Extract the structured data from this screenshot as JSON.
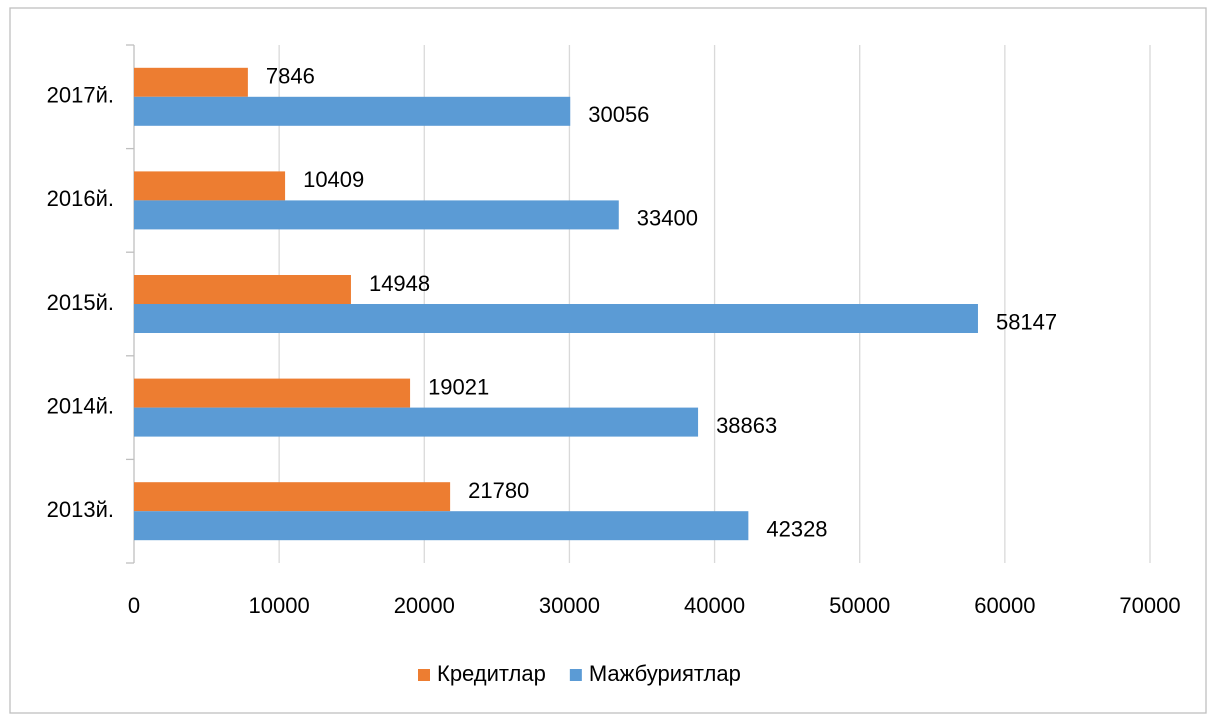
{
  "chart_data": {
    "type": "bar",
    "orientation": "horizontal",
    "categories": [
      "2013й.",
      "2014й.",
      "2015й.",
      "2016й.",
      "2017й."
    ],
    "series": [
      {
        "name": "Кредитлар",
        "color": "#ED7D31",
        "values": [
          21780,
          19021,
          14948,
          10409,
          7846
        ]
      },
      {
        "name": "Мажбуриятлар",
        "color": "#5B9BD5",
        "values": [
          42328,
          38863,
          58147,
          33400,
          30056
        ]
      }
    ],
    "xlim": [
      0,
      70000
    ],
    "xticks": [
      0,
      10000,
      20000,
      30000,
      40000,
      50000,
      60000,
      70000
    ],
    "grid": true,
    "legend": "bottom"
  }
}
